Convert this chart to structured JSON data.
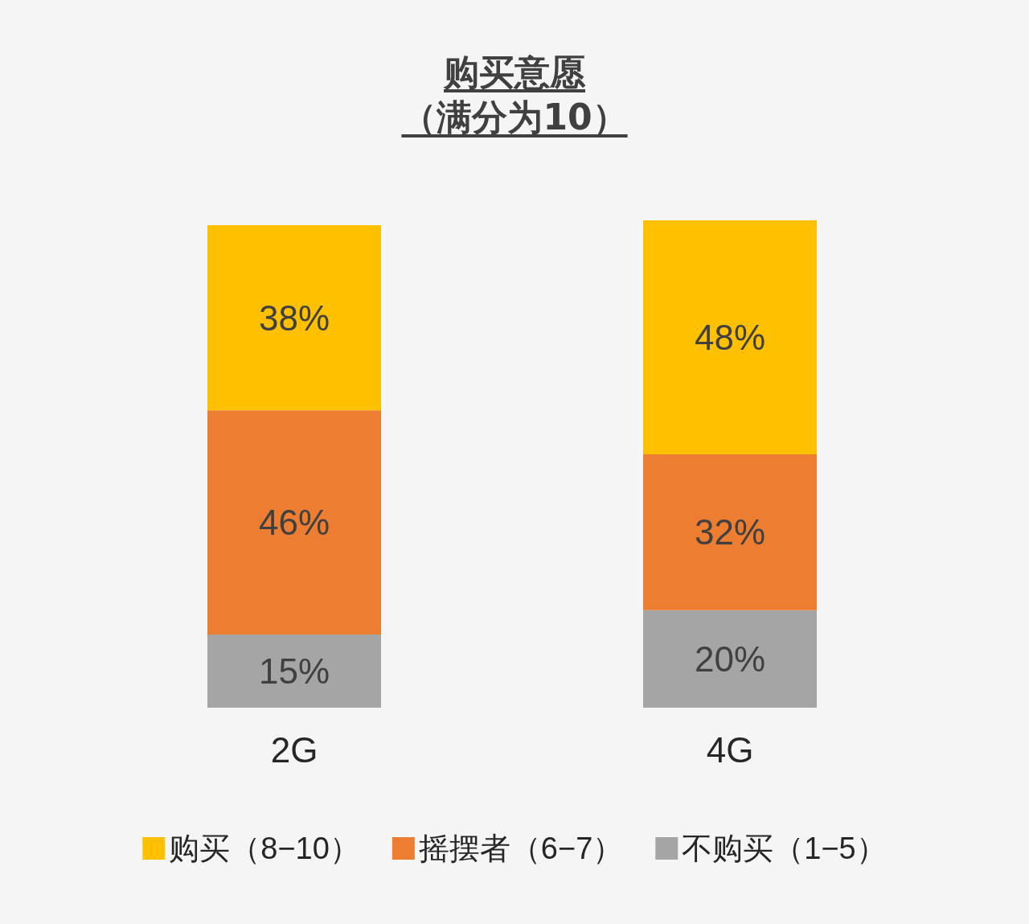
{
  "chart_data": {
    "type": "bar",
    "title": "购买意愿（满分为10）",
    "categories": [
      "2G",
      "4G"
    ],
    "stacked": true,
    "data_labels": true,
    "legend": "bottom",
    "series": [
      {
        "name": "不购买（1−5）",
        "color": "#a5a5a5",
        "values": [
          15,
          20
        ],
        "value_labels": [
          "15%",
          "20%"
        ]
      },
      {
        "name": "摇摆者（6−7）",
        "color": "#ed7d31",
        "values": [
          46,
          32
        ],
        "value_labels": [
          "46%",
          "32%"
        ]
      },
      {
        "name": "购买（8−10）",
        "color": "#ffc000",
        "values": [
          38,
          48
        ],
        "value_labels": [
          "38%",
          "48%"
        ]
      }
    ]
  }
}
